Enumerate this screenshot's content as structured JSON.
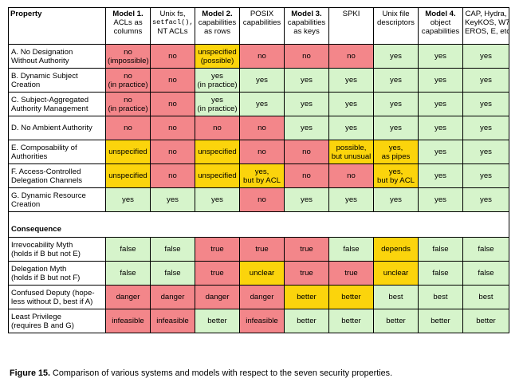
{
  "table": {
    "property_header": "Property",
    "columns": [
      {
        "bold_line": "Model 1.",
        "lines": [
          "ACLs as",
          "columns"
        ],
        "head_bold": true
      },
      {
        "bold_line": "",
        "lines": [
          "Unix fs,",
          "setfacl(),",
          "NT ACLs"
        ],
        "head_bold": false
      },
      {
        "bold_line": "Model 2.",
        "lines": [
          "capabilities",
          "as rows"
        ],
        "head_bold": true
      },
      {
        "bold_line": "",
        "lines": [
          "POSIX",
          "capabilities"
        ],
        "head_bold": false
      },
      {
        "bold_line": "Model 3.",
        "lines": [
          "capabilities",
          "as keys"
        ],
        "head_bold": true
      },
      {
        "bold_line": "",
        "lines": [
          "SPKI"
        ],
        "head_bold": false
      },
      {
        "bold_line": "",
        "lines": [
          "Unix file",
          "descriptors"
        ],
        "head_bold": false
      },
      {
        "bold_line": "Model 4.",
        "lines": [
          "object",
          "capabilities"
        ],
        "head_bold": true
      },
      {
        "bold_line": "",
        "lines": [
          "CAP, Hydra,",
          "KeyKOS, W7,",
          "EROS, E, etc."
        ],
        "head_bold": false
      }
    ],
    "properties": [
      {
        "label": [
          "A. No Designation",
          "Without Authority"
        ],
        "cells": [
          [
            "no",
            "(impossible)"
          ],
          [
            "no"
          ],
          [
            "unspecified",
            "(possible)"
          ],
          [
            "no"
          ],
          [
            "no"
          ],
          [
            "no"
          ],
          [
            "yes"
          ],
          [
            "yes"
          ],
          [
            "yes"
          ]
        ],
        "colors": [
          "red",
          "red",
          "yel",
          "red",
          "red",
          "red",
          "grn",
          "grn",
          "grn"
        ]
      },
      {
        "label": [
          "B. Dynamic Subject",
          "Creation"
        ],
        "cells": [
          [
            "no",
            "(in practice)"
          ],
          [
            "no"
          ],
          [
            "yes",
            "(in practice)"
          ],
          [
            "yes"
          ],
          [
            "yes"
          ],
          [
            "yes"
          ],
          [
            "yes"
          ],
          [
            "yes"
          ],
          [
            "yes"
          ]
        ],
        "colors": [
          "red",
          "red",
          "grn",
          "grn",
          "grn",
          "grn",
          "grn",
          "grn",
          "grn"
        ]
      },
      {
        "label": [
          "C. Subject-Aggregated",
          "Authority Management"
        ],
        "cells": [
          [
            "no",
            "(in practice)"
          ],
          [
            "no"
          ],
          [
            "yes",
            "(in practice)"
          ],
          [
            "yes"
          ],
          [
            "yes"
          ],
          [
            "yes"
          ],
          [
            "yes"
          ],
          [
            "yes"
          ],
          [
            "yes"
          ]
        ],
        "colors": [
          "red",
          "red",
          "grn",
          "grn",
          "grn",
          "grn",
          "grn",
          "grn",
          "grn"
        ]
      },
      {
        "label": [
          "D. No Ambient Authority"
        ],
        "cells": [
          [
            "no"
          ],
          [
            "no"
          ],
          [
            "no"
          ],
          [
            "no"
          ],
          [
            "yes"
          ],
          [
            "yes"
          ],
          [
            "yes"
          ],
          [
            "yes"
          ],
          [
            "yes"
          ]
        ],
        "colors": [
          "red",
          "red",
          "red",
          "red",
          "grn",
          "grn",
          "grn",
          "grn",
          "grn"
        ]
      },
      {
        "label": [
          "E. Composability of",
          "Authorities"
        ],
        "cells": [
          [
            "unspecified"
          ],
          [
            "no"
          ],
          [
            "unspecified"
          ],
          [
            "no"
          ],
          [
            "no"
          ],
          [
            "possible,",
            "but unusual"
          ],
          [
            "yes,",
            "as pipes"
          ],
          [
            "yes"
          ],
          [
            "yes"
          ]
        ],
        "colors": [
          "yel",
          "red",
          "yel",
          "red",
          "red",
          "yel",
          "yel",
          "grn",
          "grn"
        ]
      },
      {
        "label": [
          "F. Access-Controlled",
          "Delegation Channels"
        ],
        "cells": [
          [
            "unspecified"
          ],
          [
            "no"
          ],
          [
            "unspecified"
          ],
          [
            "yes,",
            "but by ACL"
          ],
          [
            "no"
          ],
          [
            "no"
          ],
          [
            "yes,",
            "but by ACL"
          ],
          [
            "yes"
          ],
          [
            "yes"
          ]
        ],
        "colors": [
          "yel",
          "red",
          "yel",
          "yel",
          "red",
          "red",
          "yel",
          "grn",
          "grn"
        ]
      },
      {
        "label": [
          "G. Dynamic Resource",
          "Creation"
        ],
        "cells": [
          [
            "yes"
          ],
          [
            "yes"
          ],
          [
            "yes"
          ],
          [
            "no"
          ],
          [
            "yes"
          ],
          [
            "yes"
          ],
          [
            "yes"
          ],
          [
            "yes"
          ],
          [
            "yes"
          ]
        ],
        "colors": [
          "grn",
          "grn",
          "grn",
          "red",
          "grn",
          "grn",
          "grn",
          "grn",
          "grn"
        ]
      }
    ],
    "consequence_header": "Consequence",
    "consequences": [
      {
        "label": [
          "Irrevocability Myth",
          "(holds if B but not E)"
        ],
        "cells": [
          [
            "false"
          ],
          [
            "false"
          ],
          [
            "true"
          ],
          [
            "true"
          ],
          [
            "true"
          ],
          [
            "false"
          ],
          [
            "depends"
          ],
          [
            "false"
          ],
          [
            "false"
          ]
        ],
        "colors": [
          "grn",
          "grn",
          "red",
          "red",
          "red",
          "grn",
          "yel",
          "grn",
          "grn"
        ]
      },
      {
        "label": [
          "Delegation Myth",
          "(holds if B but not F)"
        ],
        "cells": [
          [
            "false"
          ],
          [
            "false"
          ],
          [
            "true"
          ],
          [
            "unclear"
          ],
          [
            "true"
          ],
          [
            "true"
          ],
          [
            "unclear"
          ],
          [
            "false"
          ],
          [
            "false"
          ]
        ],
        "colors": [
          "grn",
          "grn",
          "red",
          "yel",
          "red",
          "red",
          "yel",
          "grn",
          "grn"
        ]
      },
      {
        "label": [
          "Confused Deputy (hope-",
          "less without D, best if A)"
        ],
        "cells": [
          [
            "danger"
          ],
          [
            "danger"
          ],
          [
            "danger"
          ],
          [
            "danger"
          ],
          [
            "better"
          ],
          [
            "better"
          ],
          [
            "best"
          ],
          [
            "best"
          ],
          [
            "best"
          ]
        ],
        "colors": [
          "red",
          "red",
          "red",
          "red",
          "yel",
          "yel",
          "grn",
          "grn",
          "grn"
        ]
      },
      {
        "label": [
          "Least Privilege",
          "(requires B and G)"
        ],
        "cells": [
          [
            "infeasible"
          ],
          [
            "infeasible"
          ],
          [
            "better"
          ],
          [
            "infeasible"
          ],
          [
            "better"
          ],
          [
            "better"
          ],
          [
            "better"
          ],
          [
            "better"
          ],
          [
            "better"
          ]
        ],
        "colors": [
          "red",
          "red",
          "grn",
          "red",
          "grn",
          "grn",
          "grn",
          "grn",
          "grn"
        ]
      }
    ]
  },
  "caption": {
    "figure_label": "Figure 15.",
    "text": " Comparison of various systems and models with respect to the seven security properties."
  }
}
